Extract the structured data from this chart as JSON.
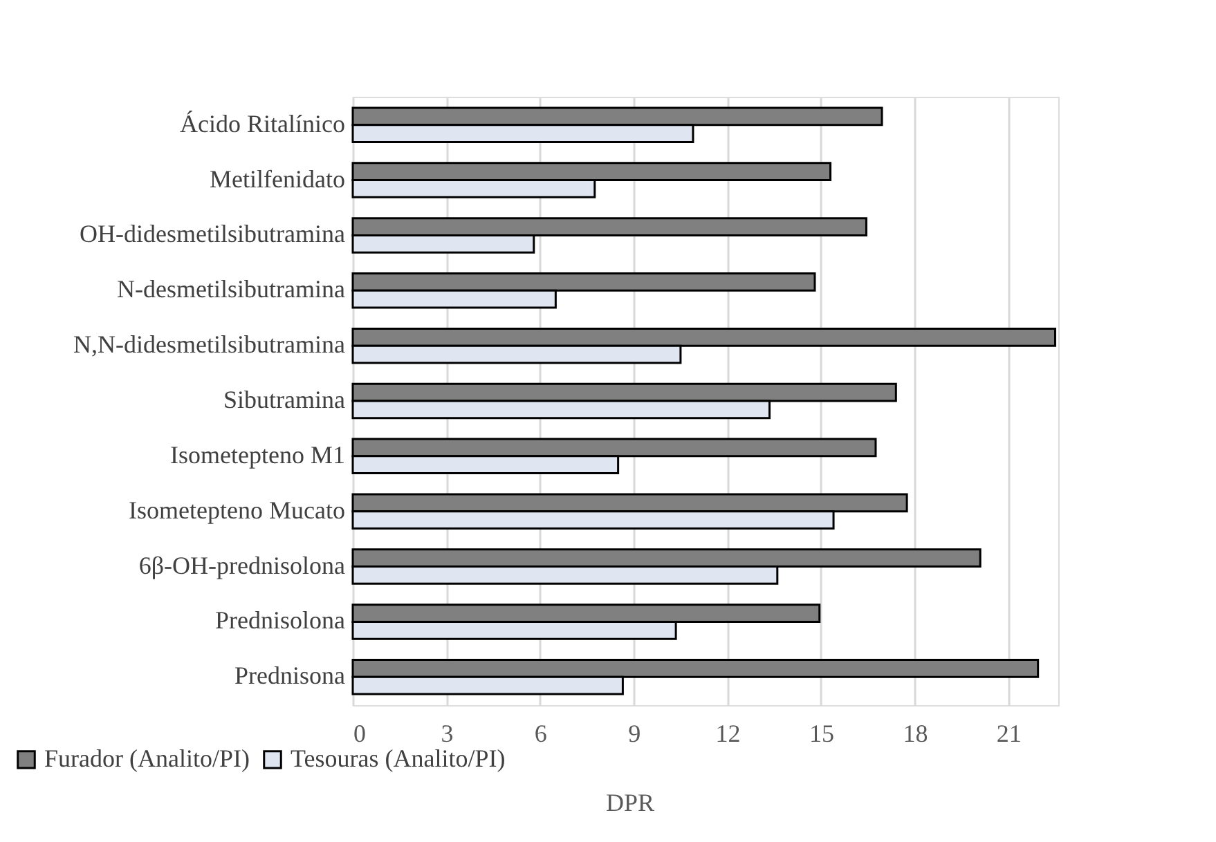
{
  "chart_data": {
    "type": "bar",
    "orientation": "horizontal",
    "xlabel": "DPR",
    "categories": [
      "Ácido Ritalínico",
      "Metilfenidato",
      "OH-didesmetilsibutramina",
      "N-desmetilsibutramina",
      "N,N-didesmetilsibutramina",
      "Sibutramina",
      "Isometepteno M1",
      "Isometepteno Mucato",
      "6β-OH-prednisolona",
      "Prednisolona",
      "Prednisona"
    ],
    "series": [
      {
        "name": "Furador (Analito/PI)",
        "color": "#808080",
        "values": [
          16.95,
          15.3,
          16.45,
          14.8,
          22.5,
          17.4,
          16.75,
          17.75,
          20.1,
          14.95,
          21.95
        ]
      },
      {
        "name": "Tesouras (Analito/PI)",
        "color": "#dfe6f2",
        "values": [
          10.9,
          7.75,
          5.8,
          6.5,
          10.5,
          13.35,
          8.5,
          15.4,
          13.6,
          10.35,
          8.65
        ]
      }
    ],
    "xlim": [
      0,
      22.6
    ],
    "xticks": [
      0,
      3,
      6,
      9,
      12,
      15,
      18,
      21
    ],
    "grid": "x",
    "legend": "bottom left"
  }
}
